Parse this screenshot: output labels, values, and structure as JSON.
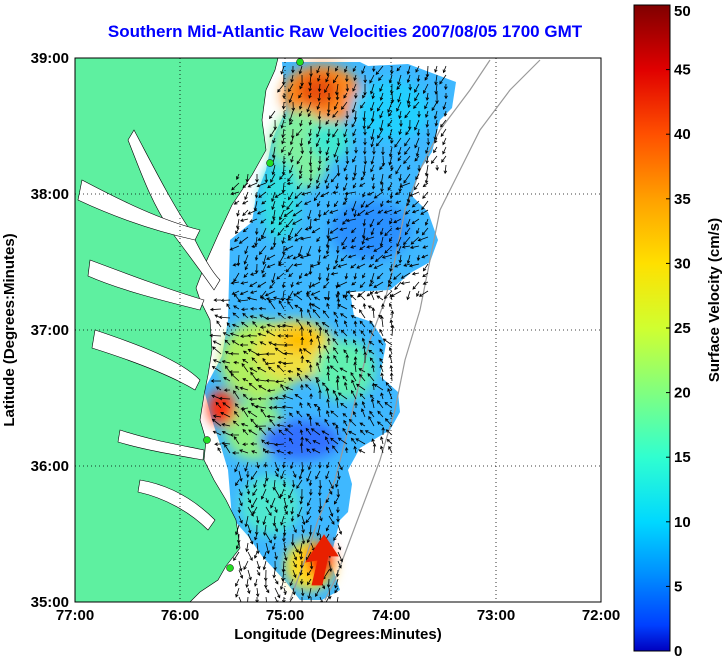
{
  "title": "Southern Mid-Atlantic Raw Velocities 2007/08/05 1700 GMT",
  "axes": {
    "x_label": "Longitude (Degrees:Minutes)",
    "y_label": "Latitude (Degrees:Minutes)",
    "x_ticks": [
      "77:00",
      "76:00",
      "75:00",
      "74:00",
      "73:00",
      "72:00"
    ],
    "y_ticks": [
      "39:00",
      "38:00",
      "37:00",
      "36:00",
      "35:00"
    ]
  },
  "colorbar": {
    "label": "Surface Velocity (cm/s)",
    "ticks": [
      "50",
      "45",
      "40",
      "35",
      "30",
      "25",
      "20",
      "15",
      "10",
      "5",
      "0"
    ],
    "range": [
      0,
      50
    ]
  },
  "colors": {
    "title": "#0000ff",
    "land": "#5ef0a0",
    "ocean_background": "#ffffff",
    "isobath": "#9a9a9a",
    "vector": "#000000",
    "station": "#22dd22"
  },
  "grid": "dotted"
}
